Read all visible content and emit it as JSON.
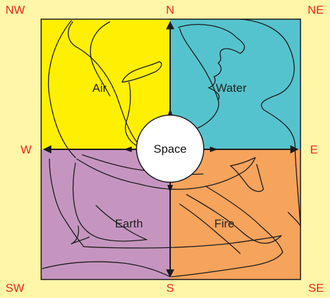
{
  "colors": {
    "background": "#fff6a8",
    "air": "#ffef00",
    "water": "#55c3cd",
    "earth": "#c595c0",
    "fire": "#f6a35c",
    "space": "#ffffff",
    "direction_text": "#e8281f",
    "line": "#1a1a1a"
  },
  "directions": {
    "nw": "NW",
    "n": "N",
    "ne": "NE",
    "w": "W",
    "e": "E",
    "sw": "SW",
    "s": "S",
    "se": "SE"
  },
  "quadrants": {
    "air": "Air",
    "water": "Water",
    "earth": "Earth",
    "fire": "Fire"
  },
  "center": {
    "label": "Space"
  }
}
